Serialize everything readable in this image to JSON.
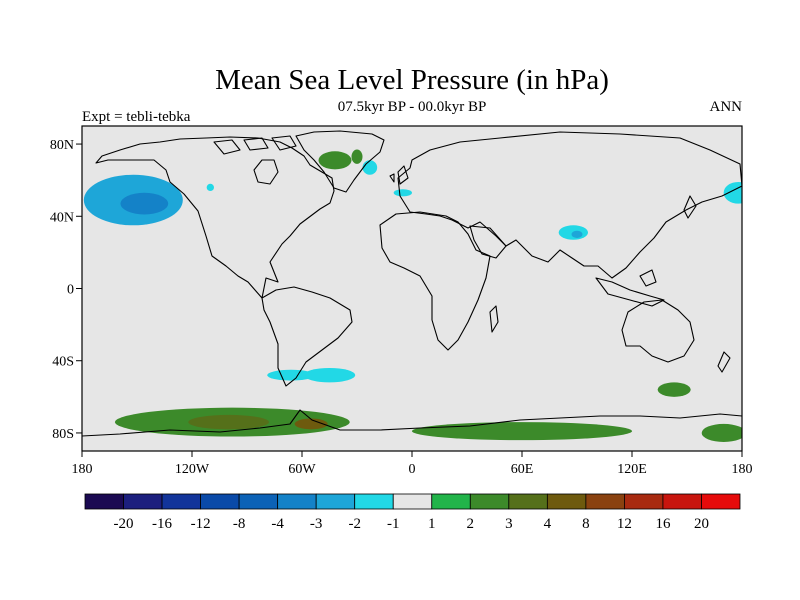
{
  "title": "Mean Sea Level Pressure (in hPa)",
  "subtitle": "07.5kyr BP - 00.0kyr BP",
  "left_label": "Expt = tebli-tebka",
  "right_label": "ANN",
  "chart_data": {
    "type": "map",
    "projection": "cylindrical-equidistant",
    "lon_range": [
      -180,
      180
    ],
    "lat_range": [
      -90,
      90
    ],
    "x_ticks": [
      {
        "value": -180,
        "label": "180"
      },
      {
        "value": -120,
        "label": "120W"
      },
      {
        "value": -60,
        "label": "60W"
      },
      {
        "value": 0,
        "label": "0"
      },
      {
        "value": 60,
        "label": "60E"
      },
      {
        "value": 120,
        "label": "120E"
      },
      {
        "value": 180,
        "label": "180"
      }
    ],
    "y_ticks": [
      {
        "value": 80,
        "label": "80N"
      },
      {
        "value": 40,
        "label": "40N"
      },
      {
        "value": 0,
        "label": "0"
      },
      {
        "value": -40,
        "label": "40S"
      },
      {
        "value": -80,
        "label": "80S"
      }
    ],
    "colorbar": {
      "colors": [
        "#1b0a52",
        "#1c1f7e",
        "#12349a",
        "#0a4aa8",
        "#0c62b6",
        "#1482c8",
        "#1ea6d8",
        "#22d8e6",
        "#e6e6e6",
        "#22b44a",
        "#3c8a2a",
        "#55701a",
        "#6e5a0e",
        "#8a4210",
        "#a82a10",
        "#c8150e",
        "#e60b0b"
      ],
      "boundaries": [
        "-20",
        "-16",
        "-12",
        "-8",
        "-4",
        "-3",
        "-2",
        "-1",
        "1",
        "2",
        "3",
        "4",
        "8",
        "12",
        "16",
        "20"
      ]
    },
    "anomaly_regions": [
      {
        "name": "north-pacific-low",
        "lon": -152,
        "lat": 49,
        "rx": 27,
        "ry": 14,
        "value": -3
      },
      {
        "name": "north-pacific-core",
        "lon": -146,
        "lat": 47,
        "rx": 13,
        "ry": 6,
        "value": -4
      },
      {
        "name": "greenland-high",
        "lon": -42,
        "lat": 71,
        "rx": 9,
        "ry": 5,
        "value": 2
      },
      {
        "name": "greenland-high-east",
        "lon": -30,
        "lat": 73,
        "rx": 3,
        "ry": 4,
        "value": 2
      },
      {
        "name": "east-greenland-low",
        "lon": -23,
        "lat": 67,
        "rx": 4,
        "ry": 4,
        "value": -2
      },
      {
        "name": "alaska-low",
        "lon": -110,
        "lat": 56,
        "rx": 2,
        "ry": 2,
        "value": -2
      },
      {
        "name": "iberia-low",
        "lon": -5,
        "lat": 53,
        "rx": 5,
        "ry": 2,
        "value": -2
      },
      {
        "name": "tibet-low",
        "lon": 88,
        "lat": 31,
        "rx": 8,
        "ry": 4,
        "value": -2
      },
      {
        "name": "tibet-core",
        "lon": 90,
        "lat": 30,
        "rx": 3,
        "ry": 2,
        "value": -3
      },
      {
        "name": "far-east-pacific-low",
        "lon": 178,
        "lat": 53,
        "rx": 8,
        "ry": 6,
        "value": -2
      },
      {
        "name": "drake-passage-low",
        "lon": -66,
        "lat": -48,
        "rx": 13,
        "ry": 3,
        "value": -2
      },
      {
        "name": "south-atlantic-low",
        "lon": -45,
        "lat": -48,
        "rx": 14,
        "ry": 4,
        "value": -2
      },
      {
        "name": "south-pacific-high",
        "lon": 143,
        "lat": -56,
        "rx": 9,
        "ry": 4,
        "value": 2
      },
      {
        "name": "antarctic-high",
        "lon": -98,
        "lat": -74,
        "rx": 64,
        "ry": 8,
        "value": 2
      },
      {
        "name": "antarctic-core-west",
        "lon": -100,
        "lat": -74,
        "rx": 22,
        "ry": 4,
        "value": 3
      },
      {
        "name": "antarctic-core-east",
        "lon": -55,
        "lat": -75,
        "rx": 9,
        "ry": 3,
        "value": 4
      },
      {
        "name": "antarctic-east-high",
        "lon": 60,
        "lat": -79,
        "rx": 60,
        "ry": 5,
        "value": 2
      },
      {
        "name": "ross-sea-high",
        "lon": 170,
        "lat": -80,
        "rx": 12,
        "ry": 5,
        "value": 2
      }
    ]
  }
}
